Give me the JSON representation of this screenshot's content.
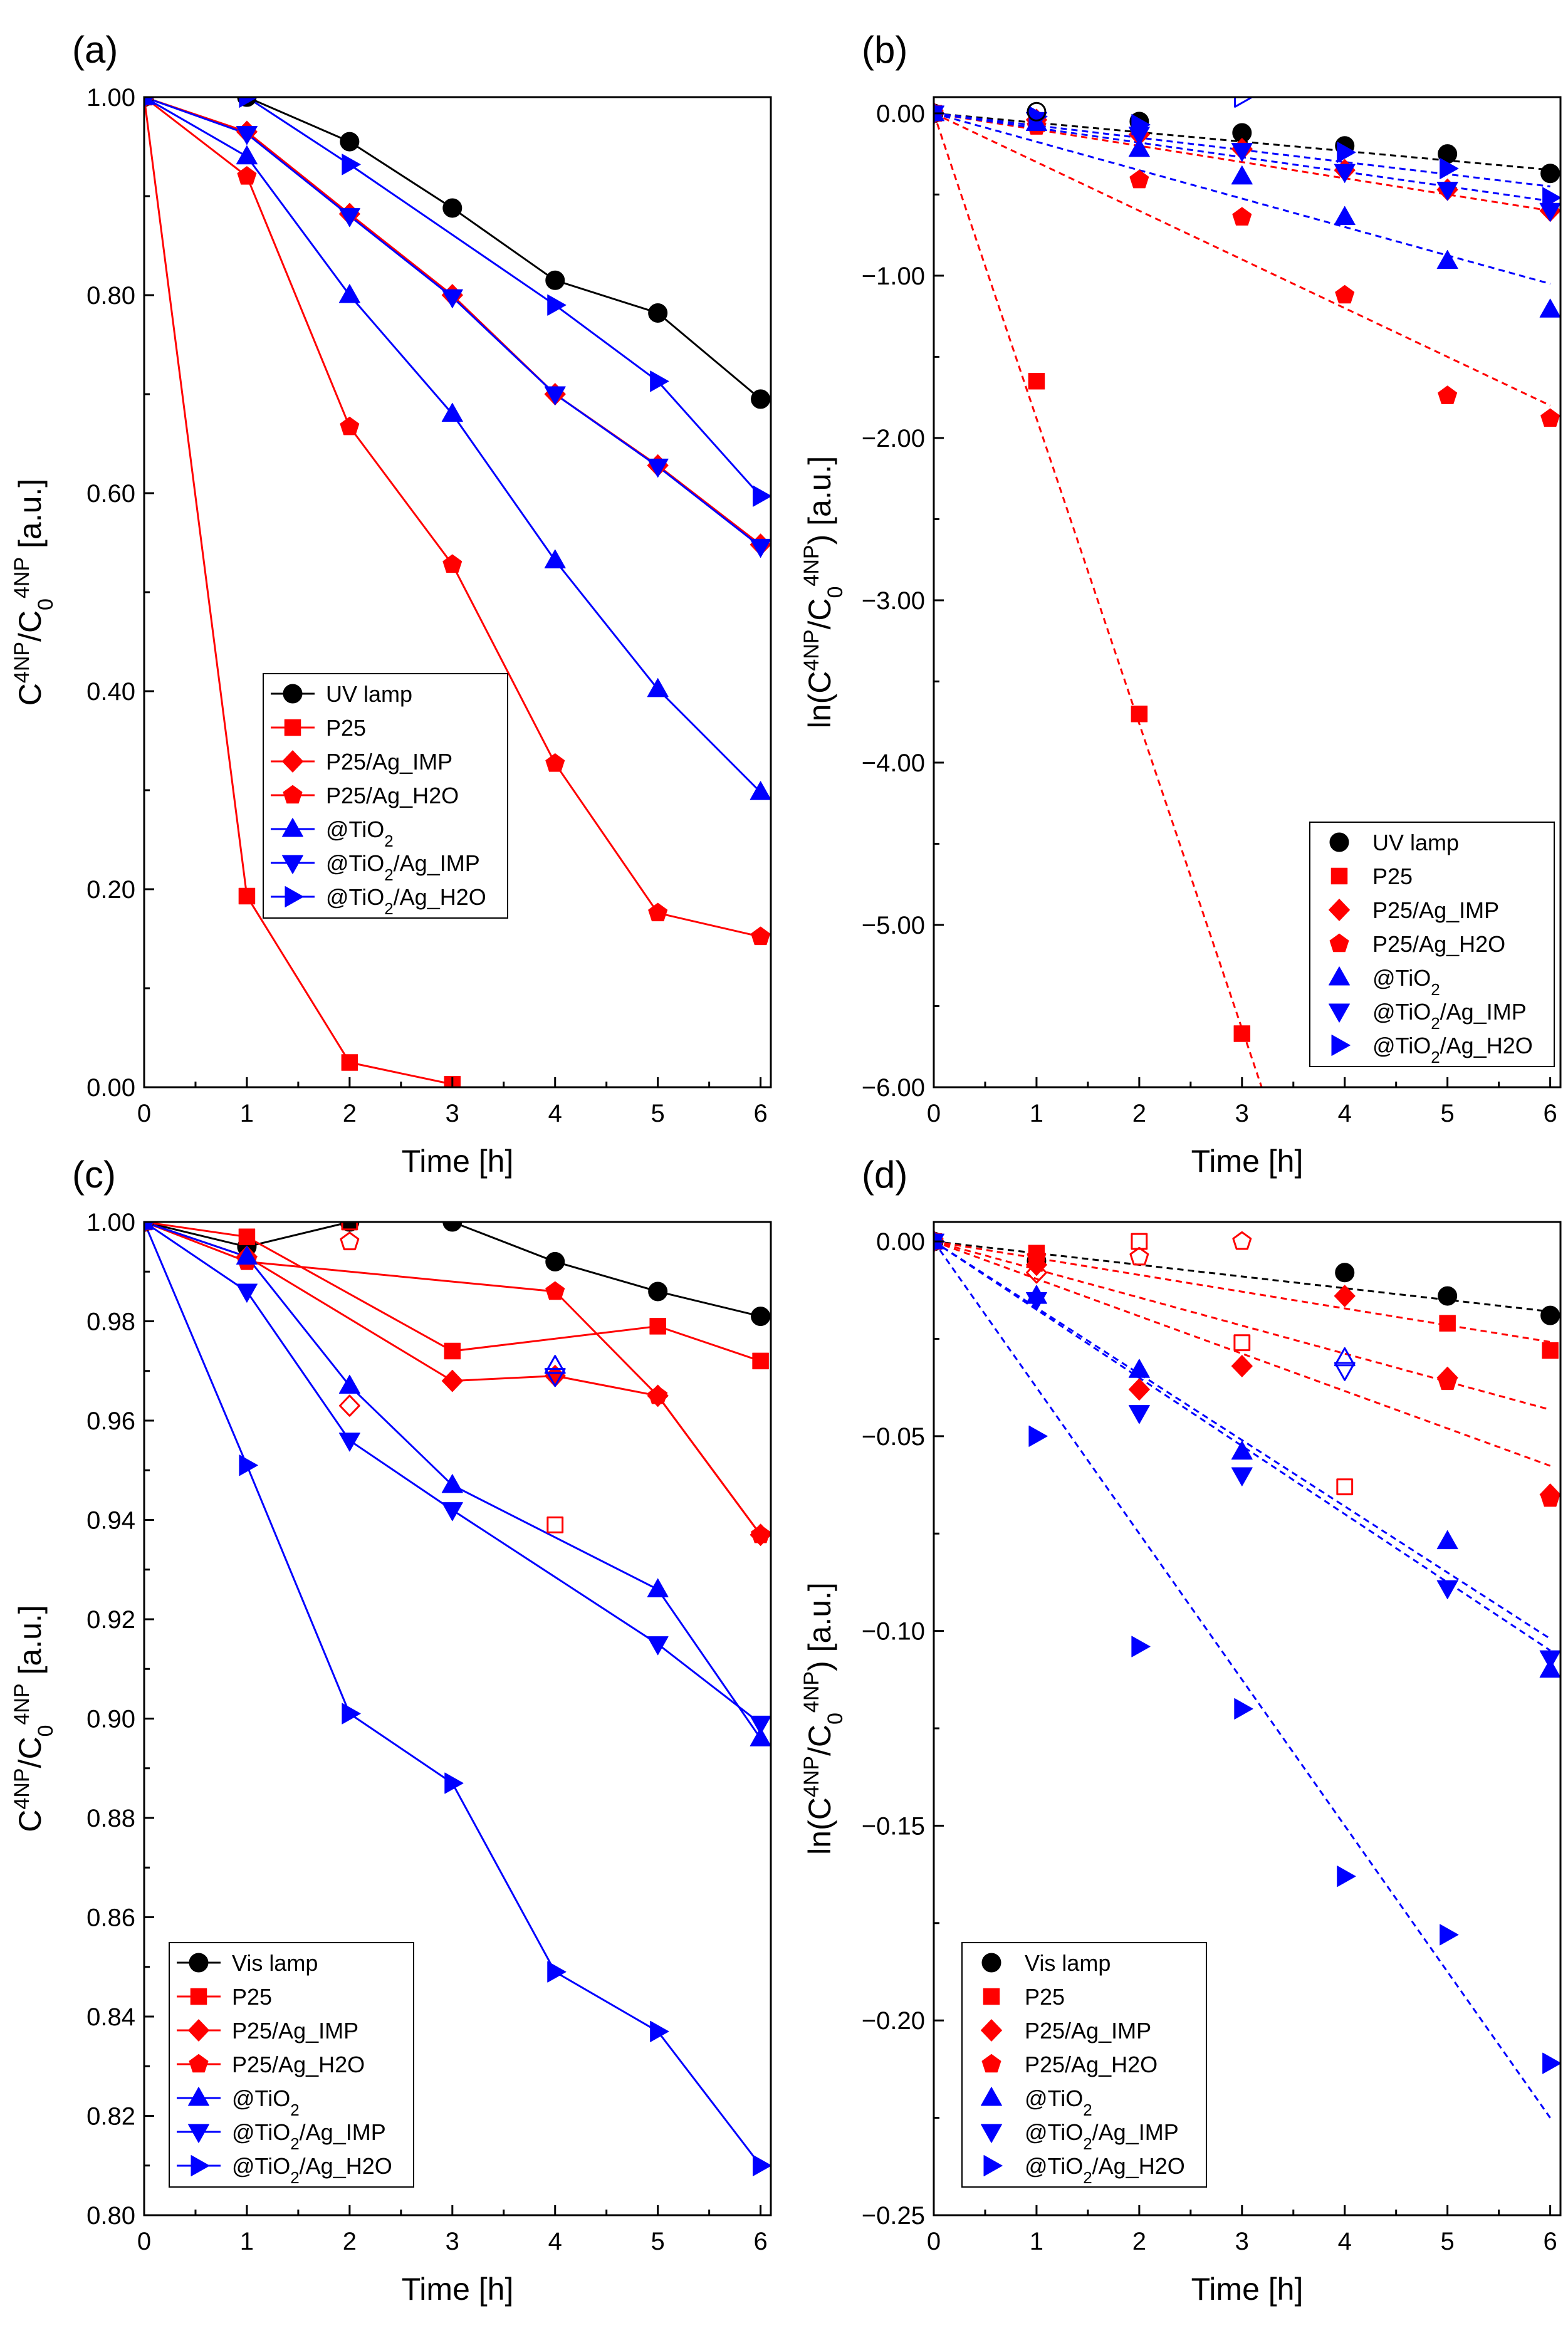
{
  "styles": {
    "colors": {
      "black": "#000000",
      "red": "#ff0000",
      "blue": "#0000ff"
    },
    "series_style": [
      {
        "color": "black",
        "marker": "circle"
      },
      {
        "color": "red",
        "marker": "square"
      },
      {
        "color": "red",
        "marker": "diamond"
      },
      {
        "color": "red",
        "marker": "pentagon"
      },
      {
        "color": "blue",
        "marker": "triangle-up"
      },
      {
        "color": "blue",
        "marker": "triangle-down"
      },
      {
        "color": "blue",
        "marker": "triangle-right"
      }
    ]
  },
  "chart_data": [
    {
      "panel_label": "(a)",
      "type": "line",
      "line_style": "solid",
      "xlabel": "Time [h]",
      "ylabel": "C4NP/C04NP [a.u.]",
      "ylabel_kind": "ratio",
      "xlim": [
        0,
        6.1
      ],
      "ylim": [
        0,
        1.0
      ],
      "xticks": [
        0,
        1,
        2,
        3,
        4,
        5,
        6
      ],
      "yticks": [
        0.0,
        0.2,
        0.4,
        0.6,
        0.8,
        1.0
      ],
      "ytick_labels": [
        "0.00",
        "0.20",
        "0.40",
        "0.60",
        "0.80",
        "1.00"
      ],
      "legend_position": "center-left",
      "x": [
        0,
        1,
        2,
        3,
        4,
        5,
        6
      ],
      "series": [
        {
          "name": "UV lamp",
          "values": [
            1.0,
            1.0,
            0.955,
            0.888,
            0.815,
            0.782,
            0.695
          ]
        },
        {
          "name": "P25",
          "values": [
            1.0,
            0.193,
            0.025,
            0.003,
            null,
            null,
            null
          ]
        },
        {
          "name": "P25/Ag_IMP",
          "values": [
            1.0,
            0.965,
            0.882,
            0.8,
            0.7,
            0.628,
            0.548
          ]
        },
        {
          "name": "P25/Ag_H2O",
          "values": [
            1.0,
            0.92,
            0.667,
            0.528,
            0.327,
            0.176,
            0.152
          ]
        },
        {
          "name": "@TiO2",
          "values": [
            1.0,
            0.94,
            0.8,
            0.68,
            0.532,
            0.402,
            0.298
          ]
        },
        {
          "name": "@TiO2/Ag_IMP",
          "values": [
            1.0,
            0.963,
            0.88,
            0.798,
            0.7,
            0.627,
            0.546
          ]
        },
        {
          "name": "@TiO2/Ag_H2O",
          "values": [
            1.0,
            1.0,
            0.932,
            null,
            0.79,
            0.713,
            0.597
          ]
        }
      ],
      "open_markers": [
        {
          "series": "UV lamp",
          "x": 1,
          "y": 1.04
        }
      ]
    },
    {
      "panel_label": "(b)",
      "type": "scatter",
      "fit_lines": "dashed",
      "xlabel": "Time [h]",
      "ylabel": "ln(C4NP/C04NP) [a.u.]",
      "ylabel_kind": "ln",
      "xlim": [
        0,
        6.1
      ],
      "ylim": [
        -6.0,
        0.1
      ],
      "xticks": [
        0,
        1,
        2,
        3,
        4,
        5,
        6
      ],
      "yticks": [
        -6,
        -5,
        -4,
        -3,
        -2,
        -1,
        0
      ],
      "ytick_labels": [
        "−6.00",
        "−5.00",
        "−4.00",
        "−3.00",
        "−2.00",
        "−1.00",
        "0.00"
      ],
      "legend_position": "bottom-right",
      "x": [
        0,
        1,
        2,
        3,
        4,
        5,
        6
      ],
      "series": [
        {
          "name": "UV lamp",
          "values": [
            0,
            null,
            -0.05,
            -0.12,
            -0.2,
            -0.25,
            -0.37
          ],
          "fit_slope": -0.058
        },
        {
          "name": "P25",
          "values": [
            0,
            -1.65,
            -3.7,
            -5.67,
            null,
            null,
            null
          ],
          "fit_slope": -1.88
        },
        {
          "name": "P25/Ag_IMP",
          "values": [
            0,
            -0.04,
            -0.13,
            -0.22,
            -0.35,
            -0.47,
            -0.6
          ],
          "fit_slope": -0.1
        },
        {
          "name": "P25/Ag_H2O",
          "values": [
            0,
            -0.08,
            -0.41,
            -0.64,
            -1.12,
            -1.74,
            -1.88
          ],
          "fit_slope": -0.3
        },
        {
          "name": "@TiO2",
          "values": [
            0,
            -0.06,
            -0.22,
            -0.39,
            -0.64,
            -0.91,
            -1.21
          ],
          "fit_slope": -0.175
        },
        {
          "name": "@TiO2/Ag_IMP",
          "values": [
            0,
            -0.04,
            -0.13,
            -0.23,
            -0.36,
            -0.47,
            -0.6
          ],
          "fit_slope": -0.09
        },
        {
          "name": "@TiO2/Ag_H2O",
          "values": [
            0,
            -0.02,
            -0.07,
            null,
            -0.24,
            -0.34,
            -0.52
          ],
          "fit_slope": -0.075
        }
      ],
      "open_markers": [
        {
          "series": "UV lamp",
          "x": 1,
          "y": 0.01
        },
        {
          "series": "@TiO2/Ag_H2O",
          "x": 3,
          "y": 0.1
        }
      ]
    },
    {
      "panel_label": "(c)",
      "type": "line",
      "line_style": "solid",
      "xlabel": "Time [h]",
      "ylabel": "C4NP/C04NP [a.u.]",
      "ylabel_kind": "ratio",
      "xlim": [
        0,
        6.1
      ],
      "ylim": [
        0.8,
        1.0
      ],
      "xticks": [
        0,
        1,
        2,
        3,
        4,
        5,
        6
      ],
      "yticks": [
        0.8,
        0.82,
        0.84,
        0.86,
        0.88,
        0.9,
        0.92,
        0.94,
        0.96,
        0.98,
        1.0
      ],
      "ytick_labels": [
        "0.80",
        "0.82",
        "0.84",
        "0.86",
        "0.88",
        "0.90",
        "0.92",
        "0.94",
        "0.96",
        "0.98",
        "1.00"
      ],
      "legend_position": "bottom-left",
      "x": [
        0,
        1,
        2,
        3,
        4,
        5,
        6
      ],
      "series": [
        {
          "name": "Vis lamp",
          "values": [
            1.0,
            0.995,
            1.0,
            1.0,
            0.992,
            0.986,
            0.981
          ]
        },
        {
          "name": "P25",
          "values": [
            1.0,
            0.997,
            null,
            0.974,
            null,
            0.979,
            0.972
          ]
        },
        {
          "name": "P25/Ag_IMP",
          "values": [
            1.0,
            0.993,
            null,
            0.968,
            0.969,
            0.965,
            0.937
          ]
        },
        {
          "name": "P25/Ag_H2O",
          "values": [
            1.0,
            0.992,
            null,
            null,
            0.986,
            0.965,
            0.937
          ]
        },
        {
          "name": "@TiO2",
          "values": [
            1.0,
            0.993,
            0.967,
            0.947,
            null,
            0.926,
            0.896
          ]
        },
        {
          "name": "@TiO2/Ag_IMP",
          "values": [
            1.0,
            0.986,
            0.956,
            0.942,
            null,
            0.915,
            0.899
          ]
        },
        {
          "name": "@TiO2/Ag_H2O",
          "values": [
            1.0,
            0.951,
            0.901,
            0.887,
            0.849,
            0.837,
            0.81
          ]
        }
      ],
      "open_markers": [
        {
          "series": "P25",
          "x": 2,
          "y": 1.0
        },
        {
          "series": "P25",
          "x": 4,
          "y": 0.939
        },
        {
          "series": "P25/Ag_IMP",
          "x": 2,
          "y": 0.963
        },
        {
          "series": "P25/Ag_H2O",
          "x": 2,
          "y": 0.996
        },
        {
          "series": "P25/Ag_H2O",
          "x": 3,
          "y": 1.005
        },
        {
          "series": "@TiO2",
          "x": 4,
          "y": 0.971
        },
        {
          "series": "@TiO2/Ag_IMP",
          "x": 4,
          "y": 0.969
        }
      ]
    },
    {
      "panel_label": "(d)",
      "type": "scatter",
      "fit_lines": "dashed",
      "xlabel": "Time [h]",
      "ylabel": "ln(C4NP/C04NP) [a.u.]",
      "ylabel_kind": "ln",
      "xlim": [
        0,
        6.1
      ],
      "ylim": [
        -0.25,
        0.005
      ],
      "xticks": [
        0,
        1,
        2,
        3,
        4,
        5,
        6
      ],
      "yticks": [
        -0.25,
        -0.2,
        -0.15,
        -0.1,
        -0.05,
        0.0
      ],
      "ytick_labels": [
        "−0.25",
        "−0.20",
        "−0.15",
        "−0.10",
        "−0.05",
        "0.00"
      ],
      "legend_position": "bottom-left",
      "x": [
        0,
        1,
        2,
        3,
        4,
        5,
        6
      ],
      "series": [
        {
          "name": "Vis lamp",
          "values": [
            0,
            -0.005,
            null,
            null,
            -0.008,
            -0.014,
            -0.019
          ],
          "fit_slope": -0.003
        },
        {
          "name": "P25",
          "values": [
            0,
            -0.003,
            null,
            null,
            null,
            -0.021,
            -0.028
          ],
          "fit_slope": -0.0043
        },
        {
          "name": "P25/Ag_IMP",
          "values": [
            0,
            -0.006,
            -0.038,
            -0.032,
            -0.014,
            -0.035,
            -0.065
          ],
          "fit_slope": -0.0072
        },
        {
          "name": "P25/Ag_H2O",
          "values": [
            0,
            -0.004,
            null,
            null,
            null,
            -0.036,
            -0.066
          ],
          "fit_slope": -0.0096
        },
        {
          "name": "@TiO2",
          "values": [
            0,
            -0.014,
            -0.033,
            -0.054,
            null,
            -0.077,
            -0.11
          ],
          "fit_slope": -0.017
        },
        {
          "name": "@TiO2/Ag_IMP",
          "values": [
            0,
            -0.015,
            -0.044,
            -0.06,
            null,
            -0.089,
            -0.107
          ],
          "fit_slope": -0.0175
        },
        {
          "name": "@TiO2/Ag_H2O",
          "values": [
            0,
            -0.05,
            -0.104,
            -0.12,
            -0.163,
            -0.178,
            -0.211
          ],
          "fit_slope": -0.0375
        }
      ],
      "open_markers": [
        {
          "series": "P25",
          "x": 2,
          "y": 0.0
        },
        {
          "series": "P25",
          "x": 3,
          "y": -0.026
        },
        {
          "series": "P25",
          "x": 4,
          "y": -0.063
        },
        {
          "series": "P25/Ag_IMP",
          "x": 1,
          "y": -0.008
        },
        {
          "series": "P25/Ag_H2O",
          "x": 2,
          "y": -0.004
        },
        {
          "series": "P25/Ag_H2O",
          "x": 3,
          "y": 0.0
        },
        {
          "series": "@TiO2",
          "x": 4,
          "y": -0.03
        },
        {
          "series": "@TiO2/Ag_IMP",
          "x": 4,
          "y": -0.033
        }
      ]
    }
  ]
}
